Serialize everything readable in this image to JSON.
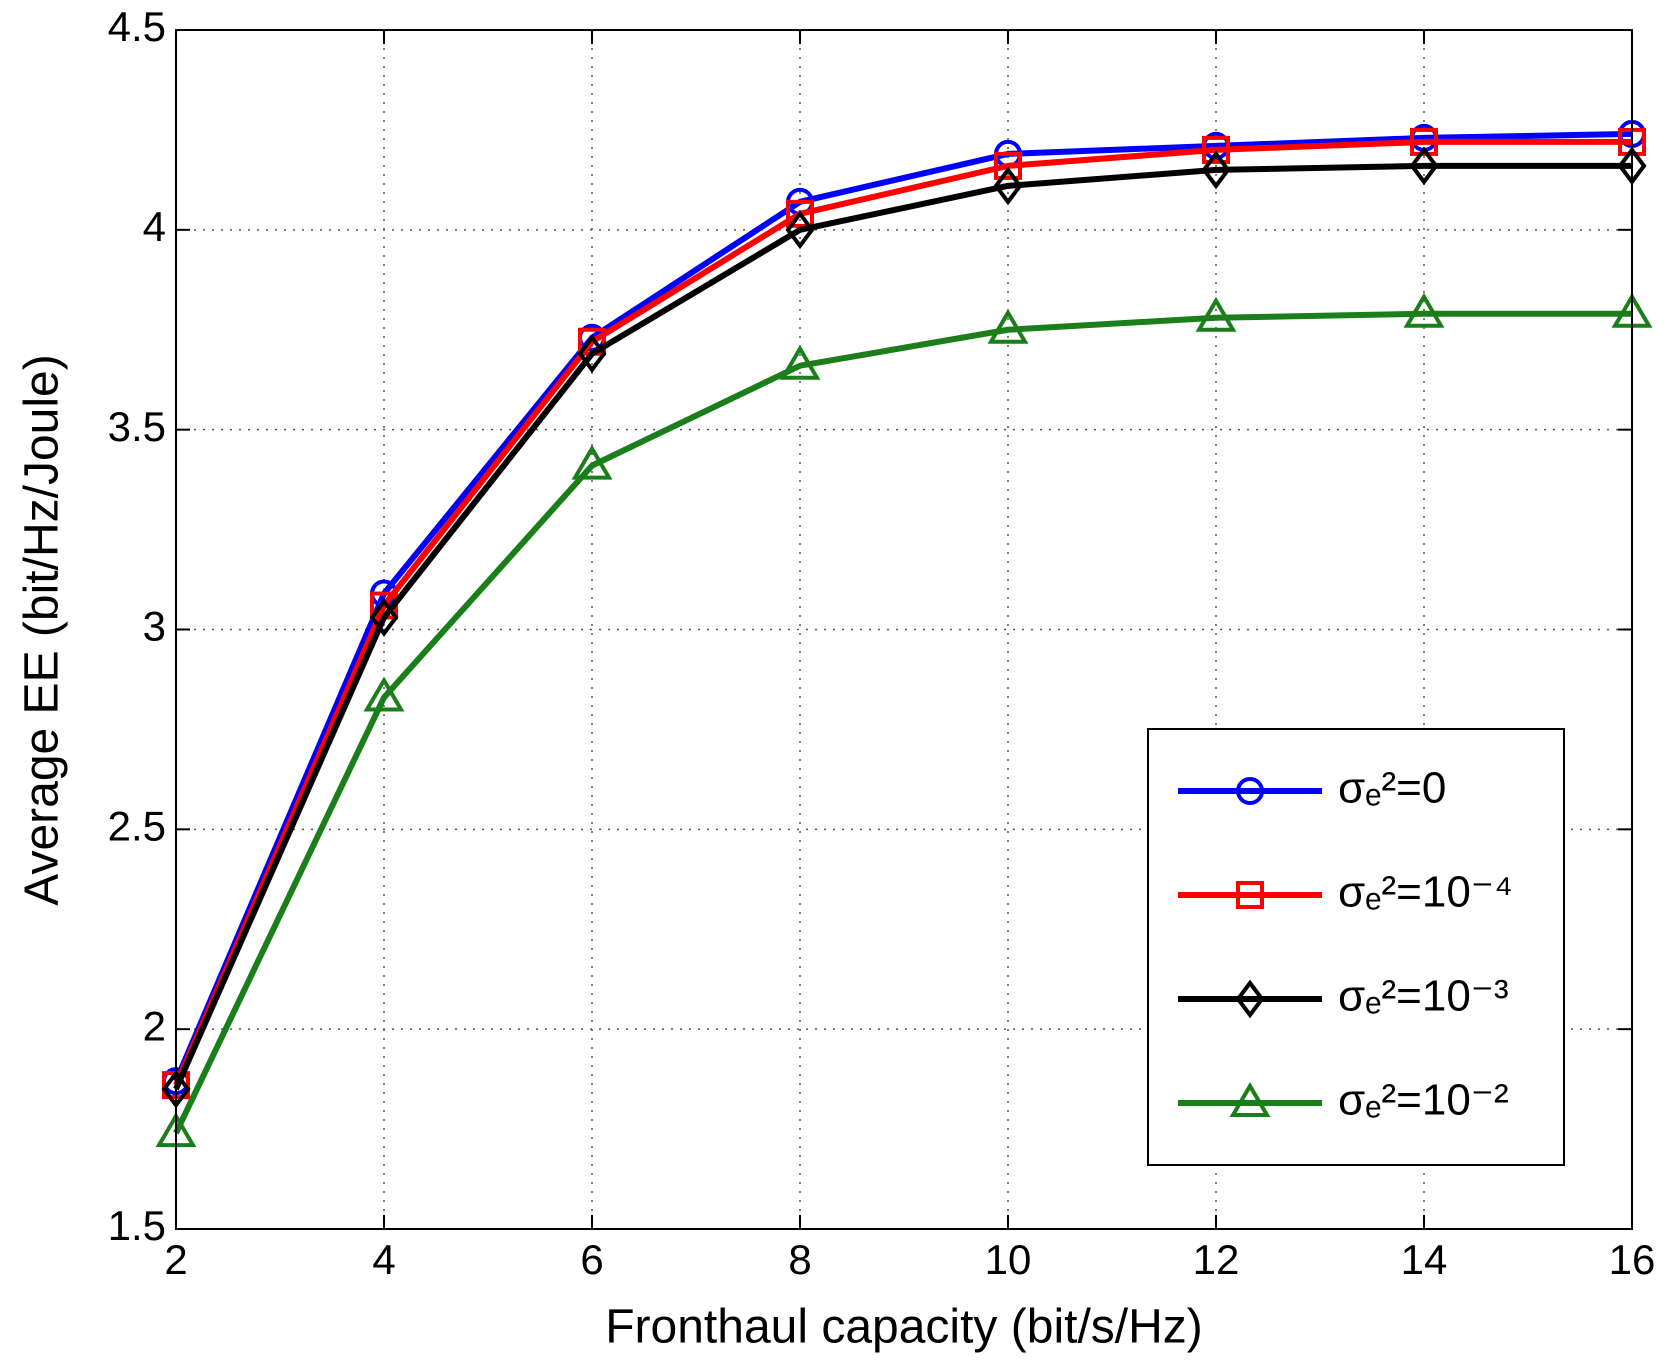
{
  "chart_data": {
    "type": "line",
    "x_label": "Fronthaul capacity (bit/s/Hz)",
    "y_label": "Average EE (bit/Hz/Joule)",
    "x": [
      2,
      4,
      6,
      8,
      10,
      12,
      14,
      16
    ],
    "xlim": [
      2,
      16
    ],
    "xticks": [
      2,
      4,
      6,
      8,
      10,
      12,
      14,
      16
    ],
    "ylim": [
      1.5,
      4.5
    ],
    "yticks": [
      1.5,
      2,
      2.5,
      3,
      3.5,
      4,
      4.5
    ],
    "grid": true,
    "legend": "lower right",
    "series": [
      {
        "name": "σₑ²=0",
        "color": "#0000ff",
        "marker": "circle",
        "values": [
          1.87,
          3.09,
          3.73,
          4.07,
          4.19,
          4.21,
          4.23,
          4.24
        ]
      },
      {
        "name": "σₑ²=10⁻⁴",
        "color": "#ff0000",
        "marker": "square",
        "values": [
          1.86,
          3.06,
          3.72,
          4.04,
          4.16,
          4.2,
          4.22,
          4.22
        ]
      },
      {
        "name": "σₑ²=10⁻³",
        "color": "#000000",
        "marker": "diamond",
        "values": [
          1.85,
          3.03,
          3.69,
          4.0,
          4.11,
          4.15,
          4.16,
          4.16
        ]
      },
      {
        "name": "σₑ²=10⁻²",
        "color": "#1a7f1a",
        "marker": "triangle",
        "values": [
          1.74,
          2.83,
          3.41,
          3.66,
          3.75,
          3.78,
          3.79,
          3.79
        ]
      }
    ]
  }
}
